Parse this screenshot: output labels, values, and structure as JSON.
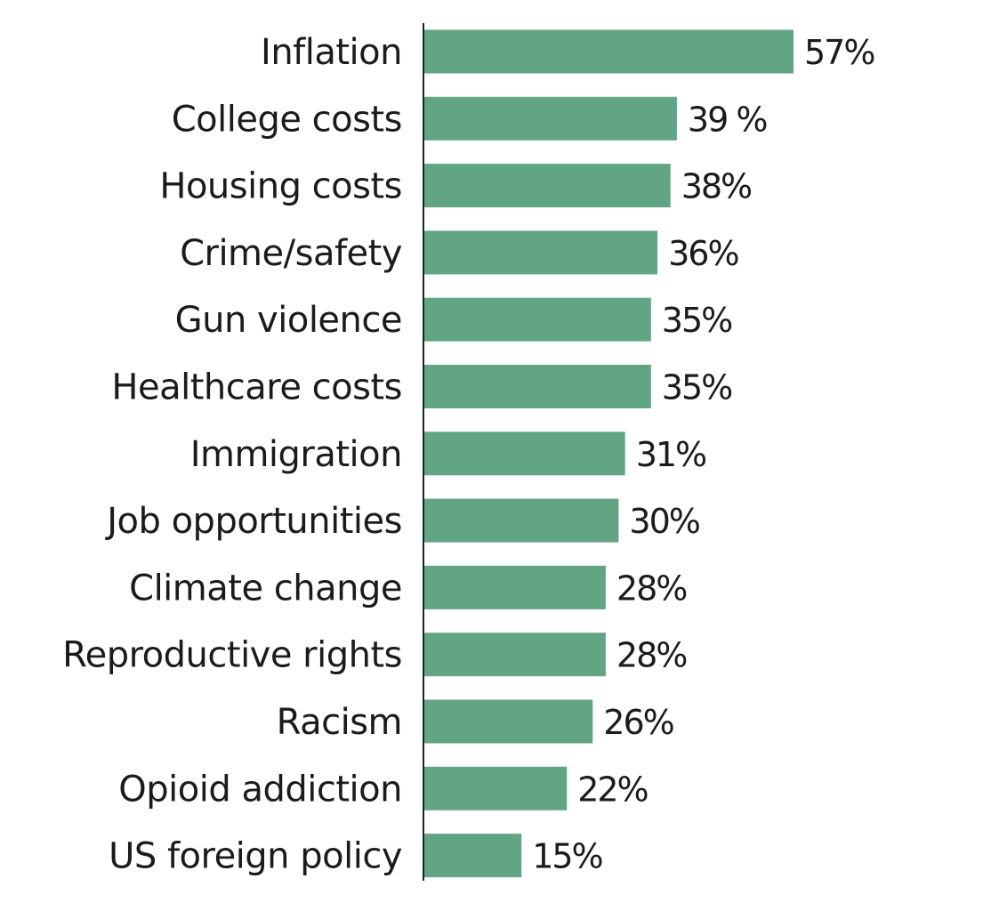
{
  "chart_data": {
    "type": "bar",
    "orientation": "horizontal",
    "categories": [
      "Inflation",
      "College costs",
      "Housing costs",
      "Crime/safety",
      "Gun violence",
      "Healthcare costs",
      "Immigration",
      "Job opportunities",
      "Climate change",
      "Reproductive rights",
      "Racism",
      "Opioid addiction",
      "US foreign policy"
    ],
    "values": [
      57,
      39,
      38,
      36,
      35,
      35,
      31,
      30,
      28,
      28,
      26,
      22,
      15
    ],
    "value_labels": [
      "57%",
      "39 %",
      "38%",
      "36%",
      "35%",
      "35%",
      "31%",
      "30%",
      "28%",
      "28%",
      "26%",
      "22%",
      "15%"
    ],
    "bar_color": "#62a584",
    "title": "",
    "xlabel": "",
    "ylabel": "",
    "grid": false
  }
}
